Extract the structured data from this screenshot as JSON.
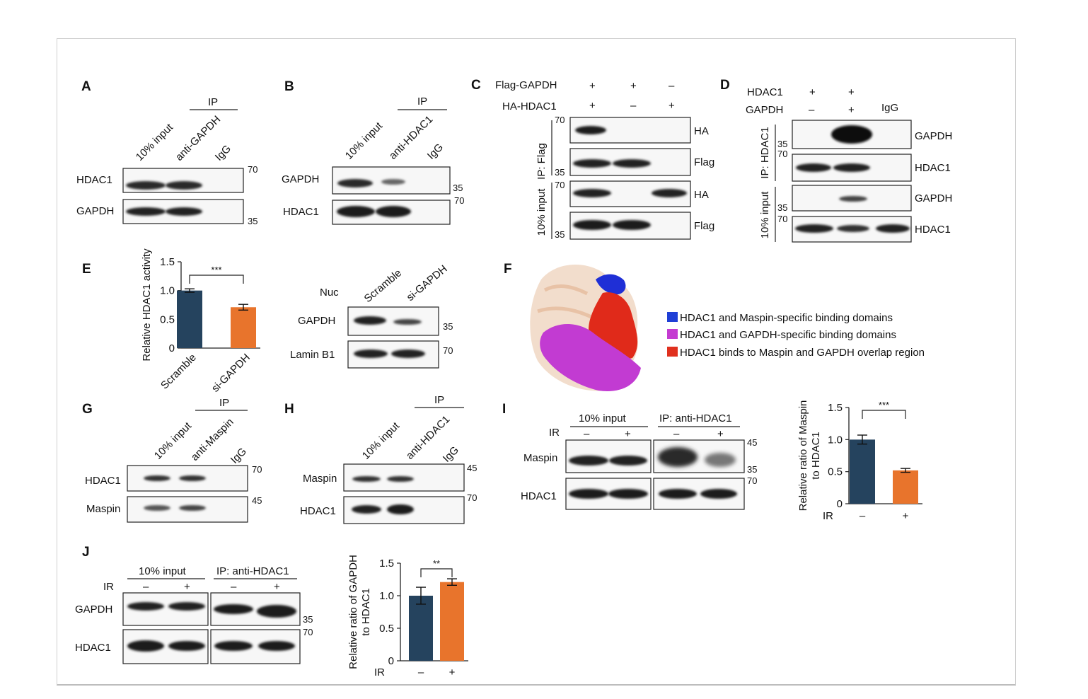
{
  "panels": {
    "A": {
      "letter": "A",
      "ip": "IP",
      "lanes": [
        "10% input",
        "anti-GAPDH",
        "IgG"
      ],
      "rows": [
        "HDAC1",
        "GAPDH"
      ],
      "markers": [
        "70",
        "35"
      ]
    },
    "B": {
      "letter": "B",
      "ip": "IP",
      "lanes": [
        "10% input",
        "anti-HDAC1",
        "IgG"
      ],
      "rows": [
        "GAPDH",
        "HDAC1"
      ],
      "markers": [
        "35",
        "70"
      ]
    },
    "C": {
      "letter": "C",
      "cond1": "Flag-GAPDH",
      "cond2": "HA-HDAC1",
      "signs1": [
        "+",
        "+",
        "–"
      ],
      "signs2": [
        "+",
        "–",
        "+"
      ],
      "group1": "IP: Flag",
      "group2": "10% input",
      "rows": [
        "HA",
        "Flag",
        "HA",
        "Flag"
      ],
      "markers": [
        "70",
        "35",
        "70",
        "35"
      ]
    },
    "D": {
      "letter": "D",
      "cond1": "HDAC1",
      "cond2": "GAPDH",
      "signs1": [
        "+",
        "+"
      ],
      "signs2": [
        "–",
        "+"
      ],
      "igg": "IgG",
      "group1": "IP: HDAC1",
      "group2": "10% input",
      "rows": [
        "GAPDH",
        "HDAC1",
        "GAPDH",
        "HDAC1"
      ],
      "markers": [
        "35",
        "70",
        "35",
        "70"
      ]
    },
    "E": {
      "letter": "E",
      "nuc": "Nuc",
      "lanes": [
        "Scramble",
        "si-GAPDH"
      ],
      "rows": [
        "GAPDH",
        "Lamin B1"
      ],
      "markers": [
        "35",
        "70"
      ],
      "sig": "***"
    },
    "F": {
      "letter": "F",
      "legend": [
        {
          "label": "HDAC1 and Maspin-specific binding domains",
          "color": "#1f3fd6"
        },
        {
          "label": "HDAC1 and GAPDH-specific binding domains",
          "color": "#c43bd1"
        },
        {
          "label": "HDAC1 binds to Maspin and GAPDH overlap region",
          "color": "#e0301e"
        }
      ]
    },
    "G": {
      "letter": "G",
      "ip": "IP",
      "lanes": [
        "10% input",
        "anti-Maspin",
        "IgG"
      ],
      "rows": [
        "HDAC1",
        "Maspin"
      ],
      "markers": [
        "70",
        "45"
      ]
    },
    "H": {
      "letter": "H",
      "ip": "IP",
      "lanes": [
        "10% input",
        "anti-HDAC1",
        "IgG"
      ],
      "rows": [
        "Maspin",
        "HDAC1"
      ],
      "markers": [
        "45",
        "70"
      ]
    },
    "I": {
      "letter": "I",
      "group1": "10% input",
      "group2": "IP: anti-HDAC1",
      "ir": "IR",
      "signs": [
        "–",
        "+",
        "–",
        "+"
      ],
      "rows": [
        "Maspin",
        "HDAC1"
      ],
      "markers": [
        "45",
        "35",
        "70"
      ],
      "sig": "***",
      "xsigns": [
        "–",
        "+"
      ]
    },
    "J": {
      "letter": "J",
      "group1": "10% input",
      "group2": "IP: anti-HDAC1",
      "ir": "IR",
      "signs": [
        "–",
        "+",
        "–",
        "+"
      ],
      "rows": [
        "GAPDH",
        "HDAC1"
      ],
      "markers": [
        "35",
        "70"
      ],
      "sig": "**",
      "xsigns": [
        "–",
        "+"
      ]
    }
  },
  "colors": {
    "navy": "#25435e",
    "orange": "#e8742c"
  },
  "chart_data": [
    {
      "id": "E",
      "type": "bar",
      "categories": [
        "Scramble",
        "si-GAPDH"
      ],
      "values": [
        1.0,
        0.71
      ],
      "errors": [
        0.03,
        0.05
      ],
      "ylabel": "Relative HDAC1 activity",
      "ylim": [
        0,
        1.5
      ],
      "yticks": [
        "0",
        "0.5",
        "1.0",
        "1.5"
      ],
      "colors": [
        "#25435e",
        "#e8742c"
      ],
      "significance": "***"
    },
    {
      "id": "I",
      "type": "bar",
      "categories": [
        "–",
        "+"
      ],
      "xgroup_label": "IR",
      "values": [
        1.0,
        0.52
      ],
      "errors": [
        0.07,
        0.03
      ],
      "ylabel": "Relative ratio of Maspin to HDAC1",
      "ylim": [
        0,
        1.5
      ],
      "yticks": [
        "0",
        "0.5",
        "1.0",
        "1.5"
      ],
      "colors": [
        "#25435e",
        "#e8742c"
      ],
      "significance": "***"
    },
    {
      "id": "J",
      "type": "bar",
      "categories": [
        "–",
        "+"
      ],
      "xgroup_label": "IR",
      "values": [
        1.0,
        1.21
      ],
      "errors": [
        0.13,
        0.05
      ],
      "ylabel": "Relative ratio of GAPDH to HDAC1",
      "ylim": [
        0,
        1.5
      ],
      "yticks": [
        "0",
        "0.5",
        "1.0",
        "1.5"
      ],
      "colors": [
        "#25435e",
        "#e8742c"
      ],
      "significance": "**"
    }
  ]
}
